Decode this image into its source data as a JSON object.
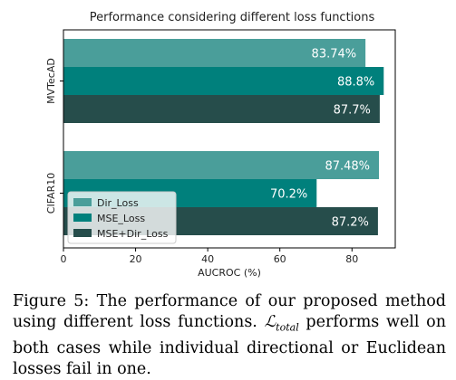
{
  "chart_data": {
    "type": "bar",
    "orientation": "horizontal",
    "title": "Performance considering different loss functions",
    "xlabel": "AUCROC (%)",
    "ylabel": "",
    "xlim": [
      0,
      92
    ],
    "x_ticks": [
      0,
      20,
      40,
      60,
      80
    ],
    "categories": [
      "MVTecAD",
      "CIFAR10"
    ],
    "series": [
      {
        "name": "Dir_Loss",
        "color": "#4a9e9a",
        "values": [
          83.74,
          87.48
        ],
        "labels": [
          "83.74%",
          "87.48%"
        ]
      },
      {
        "name": "MSE_Loss",
        "color": "#00807c",
        "values": [
          88.8,
          70.2
        ],
        "labels": [
          "88.8%",
          "70.2%"
        ]
      },
      {
        "name": "MSE+Dir_Loss",
        "color": "#264d4b",
        "values": [
          87.7,
          87.2
        ],
        "labels": [
          "87.7%",
          "87.2%"
        ]
      }
    ],
    "legend": "bottom-left",
    "grid": false
  },
  "caption": {
    "prefix": "Figure 5: The performance of our proposed method using different loss functions.",
    "math_main": "ℒ",
    "math_sub": "total",
    "suffix": "performs well on both cases while individual directional or Euclidean losses fail in one."
  }
}
